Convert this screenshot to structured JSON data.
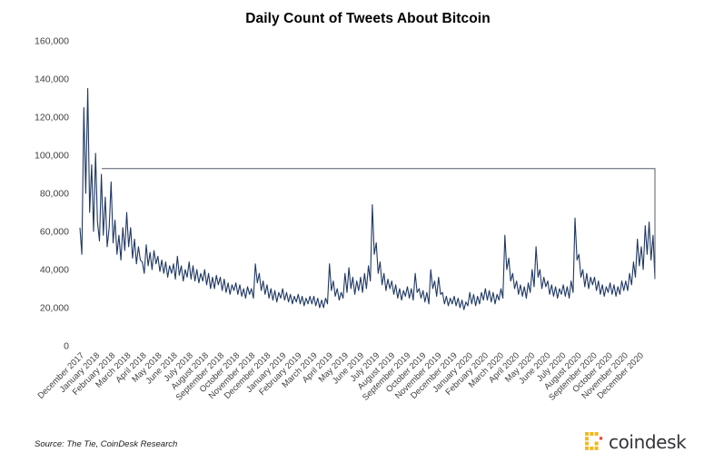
{
  "header": {
    "title": "Daily Count of Tweets About Bitcoin"
  },
  "footer": {
    "source_note": "Source: The Tie, CoinDesk Research",
    "brand_wordmark": "coindesk"
  },
  "colors": {
    "series_line": "#1f3864",
    "annotation_line": "#555e6b",
    "axis_label": "#3f3f3f",
    "title_text": "#000000",
    "brand_text": "#33343a",
    "brand_yellow": "#f5b81c",
    "brand_orange": "#e8433c"
  },
  "chart_data": {
    "type": "line",
    "title": "Daily Count of Tweets About Bitcoin",
    "xlabel": "",
    "ylabel": "",
    "ylim": [
      0,
      160000
    ],
    "grid": false,
    "legend": false,
    "y_tick_values": [
      0,
      20000,
      40000,
      60000,
      80000,
      100000,
      120000,
      140000,
      160000
    ],
    "y_tick_labels": [
      "0",
      "20,000",
      "40,000",
      "60,000",
      "80,000",
      "100,000",
      "120,000",
      "140,000",
      "160,000"
    ],
    "categories": [
      "December 2017",
      "January 2018",
      "February 2018",
      "March 2018",
      "April 2018",
      "May 2018",
      "June 2018",
      "July 2018",
      "August 2018",
      "September 2018",
      "October 2018",
      "November 2018",
      "December 2018",
      "January 2019",
      "February 2019",
      "March 2019",
      "April 2019",
      "May 2019",
      "June 2019",
      "July 2019",
      "August 2019",
      "September 2019",
      "October 2019",
      "November 2019",
      "December 2019",
      "January 2020",
      "February 2020",
      "March 2020",
      "April 2020",
      "May 2020",
      "June 2020",
      "July 2020",
      "August 2020",
      "September 2020",
      "October 2020",
      "November 2020",
      "December 2020"
    ],
    "samples_per_month": 8,
    "annotation": {
      "type": "threshold-corner",
      "level": 93000
    },
    "series": [
      {
        "name": "Daily count of tweets about Bitcoin",
        "values": [
          62000,
          48000,
          125000,
          80000,
          135000,
          70000,
          95000,
          60000,
          101000,
          65000,
          55000,
          90000,
          58000,
          78000,
          52000,
          62000,
          86000,
          54000,
          66000,
          48000,
          58000,
          45000,
          62000,
          50000,
          70000,
          52000,
          62000,
          46000,
          56000,
          43000,
          52000,
          45000,
          44000,
          38000,
          53000,
          42000,
          49000,
          40000,
          50000,
          43000,
          47000,
          39000,
          45000,
          38000,
          44000,
          36000,
          42000,
          38000,
          43000,
          35000,
          47000,
          37000,
          42000,
          34000,
          40000,
          36000,
          44000,
          35000,
          42000,
          34000,
          40000,
          33000,
          38000,
          34000,
          40000,
          32000,
          38000,
          30000,
          36000,
          30000,
          37000,
          32000,
          36000,
          29000,
          35000,
          28000,
          33000,
          27000,
          32000,
          29000,
          33000,
          27000,
          32000,
          26000,
          30000,
          25000,
          31000,
          27000,
          30000,
          25000,
          43000,
          33000,
          38000,
          29000,
          34000,
          27000,
          32000,
          25000,
          30000,
          24000,
          29000,
          23000,
          28000,
          25000,
          30000,
          24000,
          28000,
          23000,
          27000,
          22000,
          26000,
          23000,
          27000,
          22000,
          26000,
          21000,
          25000,
          22000,
          26000,
          22000,
          26000,
          21000,
          25000,
          20000,
          24000,
          20000,
          25000,
          22000,
          43000,
          29000,
          34000,
          26000,
          30000,
          24000,
          28000,
          25000,
          38000,
          28000,
          41000,
          30000,
          36000,
          27000,
          34000,
          29000,
          36000,
          28000,
          38000,
          30000,
          42000,
          34000,
          74000,
          48000,
          54000,
          38000,
          44000,
          32000,
          38000,
          29000,
          35000,
          30000,
          34000,
          27000,
          32000,
          25000,
          30000,
          24000,
          29000,
          26000,
          31000,
          25000,
          30000,
          24000,
          38000,
          28000,
          30000,
          25000,
          29000,
          23000,
          28000,
          22000,
          40000,
          30000,
          34000,
          26000,
          36000,
          27000,
          28000,
          22000,
          26000,
          21000,
          25000,
          22000,
          26000,
          21000,
          25000,
          20000,
          24000,
          19000,
          23000,
          21000,
          28000,
          22000,
          27000,
          21000,
          26000,
          22000,
          28000,
          24000,
          30000,
          24000,
          29000,
          23000,
          28000,
          22000,
          27000,
          24000,
          30000,
          25000,
          58000,
          40000,
          46000,
          34000,
          38000,
          30000,
          34000,
          27000,
          32000,
          26000,
          31000,
          25000,
          33000,
          28000,
          40000,
          31000,
          52000,
          36000,
          40000,
          30000,
          36000,
          31000,
          34000,
          27000,
          32000,
          26000,
          31000,
          25000,
          30000,
          27000,
          32000,
          26000,
          31000,
          25000,
          34000,
          28000,
          67000,
          45000,
          48000,
          36000,
          40000,
          31000,
          38000,
          30000,
          36000,
          32000,
          36000,
          29000,
          34000,
          27000,
          32000,
          26000,
          31000,
          28000,
          33000,
          27000,
          32000,
          26000,
          31000,
          27000,
          34000,
          29000,
          34000,
          29000,
          38000,
          32000,
          44000,
          36000,
          56000,
          42000,
          52000,
          40000,
          63000,
          48000,
          65000,
          45000,
          58000,
          35000
        ]
      }
    ]
  }
}
